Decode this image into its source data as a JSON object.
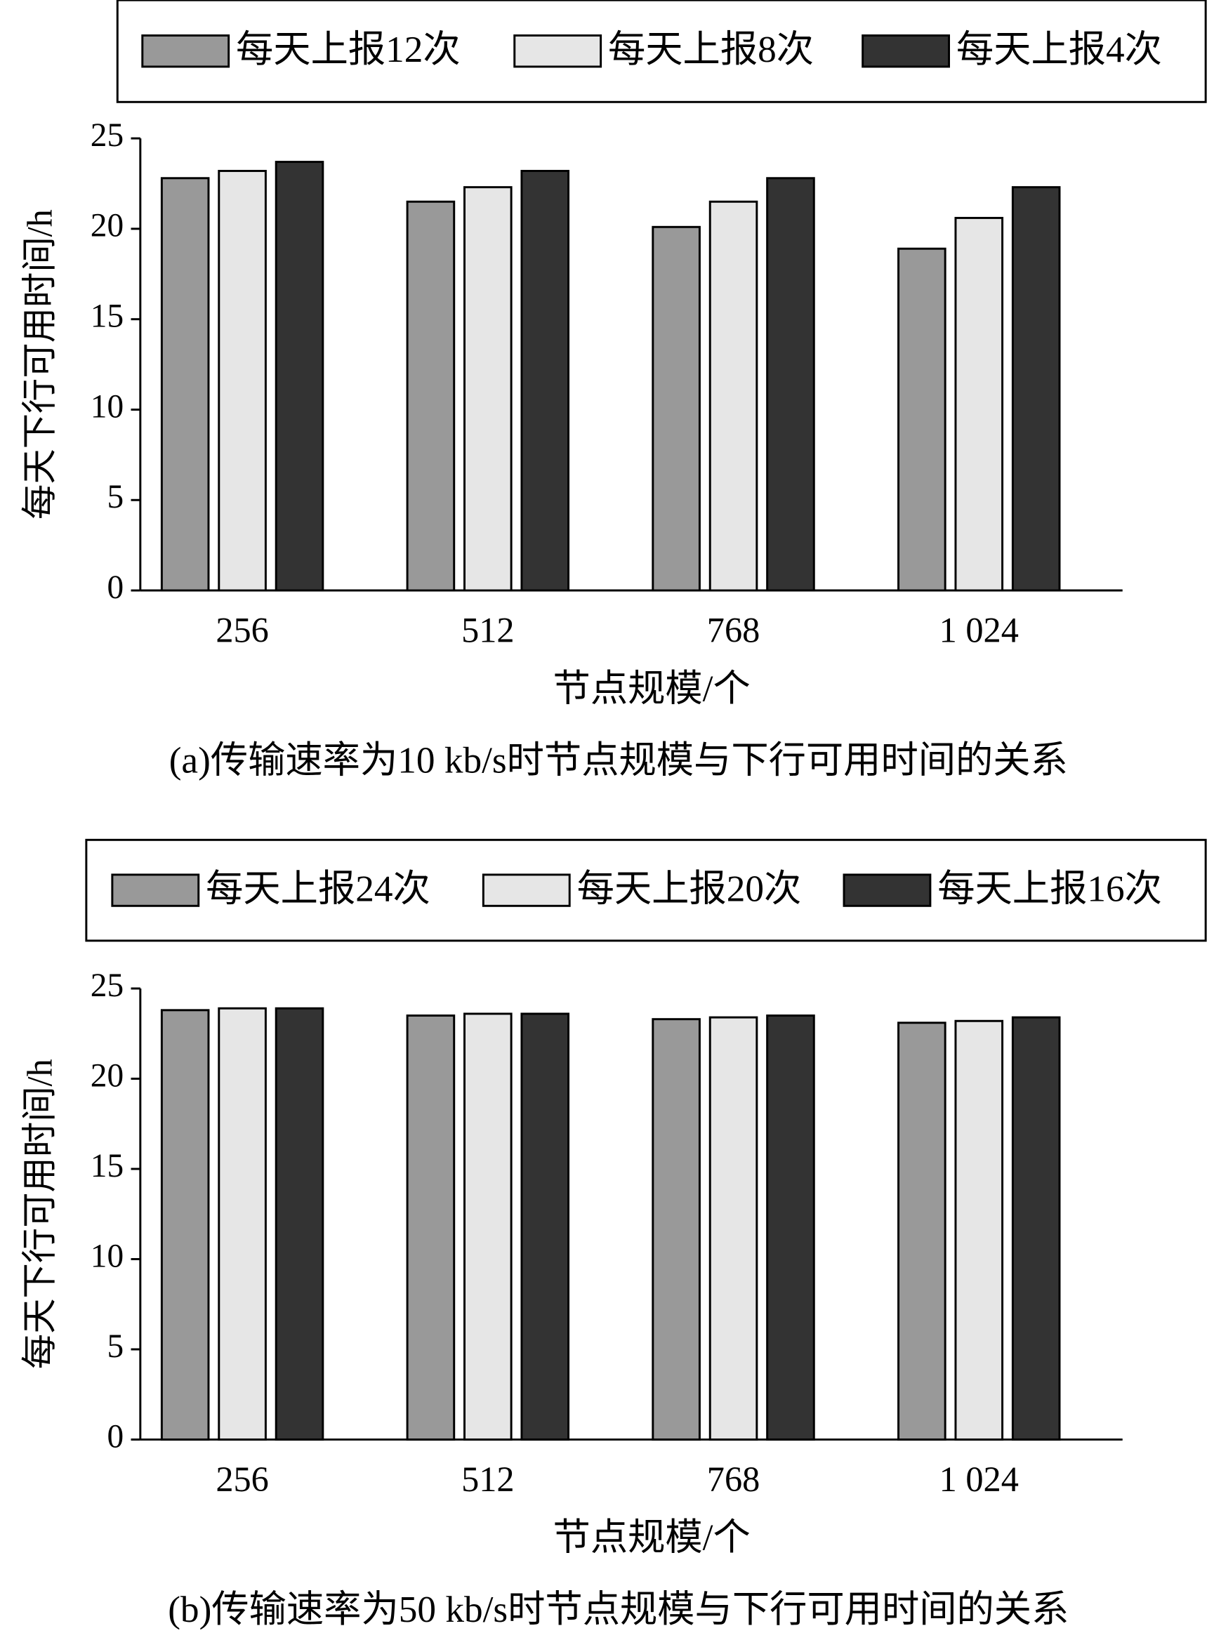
{
  "chart_data": [
    {
      "type": "bar",
      "y_label": "每天下行可用时间/h",
      "x_label": "节点规模/个",
      "caption": "(a)传输速率为10 kb/s时节点规模与下行可用时间的关系",
      "categories": [
        "256",
        "512",
        "768",
        "1 024"
      ],
      "series": [
        {
          "name": "每天上报12次",
          "color": "#999999",
          "values": [
            22.8,
            21.5,
            20.1,
            18.9
          ]
        },
        {
          "name": "每天上报8次",
          "color": "#e6e6e6",
          "values": [
            23.2,
            22.3,
            21.5,
            20.6
          ]
        },
        {
          "name": "每天上报4次",
          "color": "#333333",
          "values": [
            23.7,
            23.2,
            22.8,
            22.3
          ]
        }
      ],
      "ylim": [
        0,
        25
      ],
      "yticks": [
        0,
        5,
        10,
        15,
        20,
        25
      ]
    },
    {
      "type": "bar",
      "y_label": "每天下行可用时间/h",
      "x_label": "节点规模/个",
      "caption": "(b)传输速率为50 kb/s时节点规模与下行可用时间的关系",
      "categories": [
        "256",
        "512",
        "768",
        "1 024"
      ],
      "series": [
        {
          "name": "每天上报24次",
          "color": "#999999",
          "values": [
            23.8,
            23.5,
            23.3,
            23.1
          ]
        },
        {
          "name": "每天上报20次",
          "color": "#e6e6e6",
          "values": [
            23.9,
            23.6,
            23.4,
            23.2
          ]
        },
        {
          "name": "每天上报16次",
          "color": "#333333",
          "values": [
            23.9,
            23.6,
            23.5,
            23.4
          ]
        }
      ],
      "ylim": [
        0,
        25
      ],
      "yticks": [
        0,
        5,
        10,
        15,
        20,
        25
      ]
    }
  ]
}
